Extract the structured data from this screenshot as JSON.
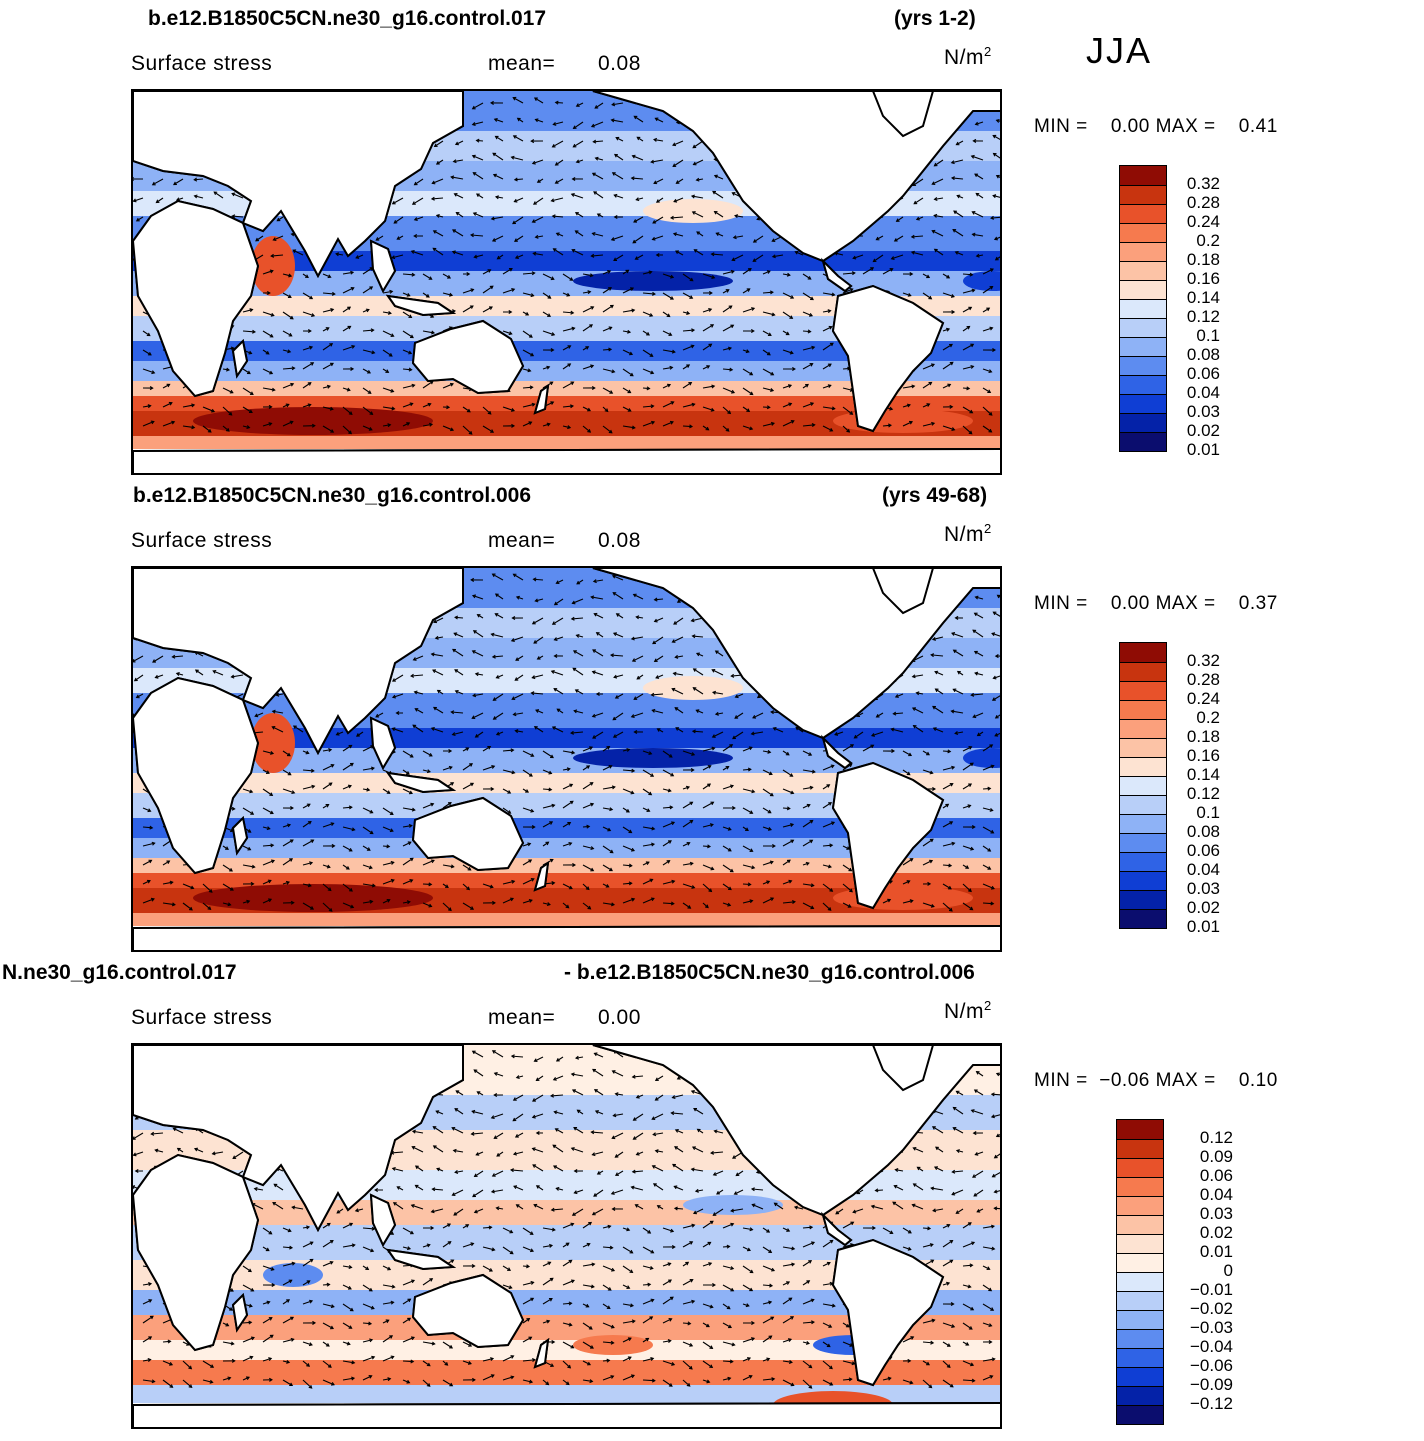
{
  "season": "JJA",
  "colors": {
    "seq": [
      "#0b0d6e",
      "#0422a8",
      "#0f3ed4",
      "#2f63e6",
      "#5d8cf0",
      "#8eb2f6",
      "#b8cff8",
      "#dbe8fb",
      "#fde3d2",
      "#fcc3a6",
      "#fba07c",
      "#f67a4e",
      "#e8522a",
      "#c8340f",
      "#8f0c04"
    ],
    "diff": [
      "#0b0d6e",
      "#0422a8",
      "#0f3ed4",
      "#2f63e6",
      "#5d8cf0",
      "#8eb2f6",
      "#b8cff8",
      "#dbe8fb",
      "#fff0e4",
      "#fde3d2",
      "#fcc3a6",
      "#fba07c",
      "#f67a4e",
      "#e8522a",
      "#c8340f",
      "#8f0c04"
    ]
  },
  "panels": [
    {
      "case": "b.e12.B1850C5CN.ne30_g16.control.017",
      "years": "(yrs 1-2)",
      "variable": "Surface stress",
      "mean_label": "mean=",
      "mean": "0.08",
      "units": "N/m",
      "units_exp": "2",
      "min_label": "MIN =",
      "min": "0.00",
      "max_label": "MAX =",
      "max": "0.41",
      "levels": [
        "0.32",
        "0.28",
        "0.24",
        "0.2",
        "0.18",
        "0.16",
        "0.14",
        "0.12",
        "0.1",
        "0.08",
        "0.06",
        "0.04",
        "0.03",
        "0.02",
        "0.01"
      ]
    },
    {
      "case": "b.e12.B1850C5CN.ne30_g16.control.006",
      "years": "(yrs 49-68)",
      "variable": "Surface stress",
      "mean_label": "mean=",
      "mean": "0.08",
      "units": "N/m",
      "units_exp": "2",
      "min_label": "MIN =",
      "min": "0.00",
      "max_label": "MAX =",
      "max": "0.37",
      "levels": [
        "0.32",
        "0.28",
        "0.24",
        "0.2",
        "0.18",
        "0.16",
        "0.14",
        "0.12",
        "0.1",
        "0.08",
        "0.06",
        "0.04",
        "0.03",
        "0.02",
        "0.01"
      ]
    },
    {
      "case": "N.ne30_g16.control.017",
      "case_right": "- b.e12.B1850C5CN.ne30_g16.control.006",
      "variable": "Surface stress",
      "mean_label": "mean=",
      "mean": "0.00",
      "units": "N/m",
      "units_exp": "2",
      "min_label": "MIN =",
      "min": "−0.06",
      "max_label": "MAX =",
      "max": "0.10",
      "levels": [
        "0.12",
        "0.09",
        "0.06",
        "0.04",
        "0.03",
        "0.02",
        "0.01",
        "0",
        "−0.01",
        "−0.02",
        "−0.03",
        "−0.04",
        "−0.06",
        "−0.09",
        "−0.12"
      ]
    }
  ],
  "chart_data": [
    {
      "type": "heatmap",
      "title": "b.e12.B1850C5CN.ne30_g16.control.017",
      "subtitle": "(yrs 1-2)",
      "variable": "Surface stress",
      "units": "N/m²",
      "mean": 0.08,
      "min": 0.0,
      "max": 0.41,
      "contour_levels": [
        0.01,
        0.02,
        0.03,
        0.04,
        0.06,
        0.08,
        0.1,
        0.12,
        0.14,
        0.16,
        0.18,
        0.2,
        0.24,
        0.28,
        0.32
      ],
      "vectors": true
    },
    {
      "type": "heatmap",
      "title": "b.e12.B1850C5CN.ne30_g16.control.006",
      "subtitle": "(yrs 49-68)",
      "variable": "Surface stress",
      "units": "N/m²",
      "mean": 0.08,
      "min": 0.0,
      "max": 0.37,
      "contour_levels": [
        0.01,
        0.02,
        0.03,
        0.04,
        0.06,
        0.08,
        0.1,
        0.12,
        0.14,
        0.16,
        0.18,
        0.2,
        0.24,
        0.28,
        0.32
      ],
      "vectors": true
    },
    {
      "type": "heatmap",
      "title": "N.ne30_g16.control.017 - b.e12.B1850C5CN.ne30_g16.control.006",
      "variable": "Surface stress",
      "units": "N/m²",
      "mean": 0.0,
      "min": -0.06,
      "max": 0.1,
      "contour_levels": [
        -0.12,
        -0.09,
        -0.06,
        -0.04,
        -0.03,
        -0.02,
        -0.01,
        0,
        0.01,
        0.02,
        0.03,
        0.04,
        0.06,
        0.09,
        0.12
      ],
      "vectors": true
    }
  ]
}
